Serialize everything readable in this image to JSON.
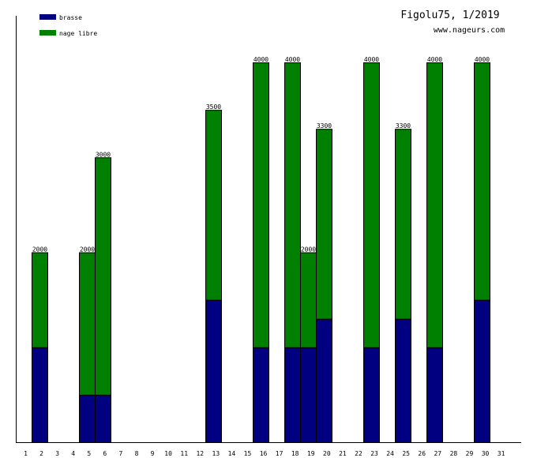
{
  "chart_data": {
    "type": "bar",
    "stacked": true,
    "title": "Figolu75, 1/2019",
    "subtitle": "www.nageurs.com",
    "xlabel": "",
    "ylabel": "",
    "ylim": [
      0,
      4000
    ],
    "grid": false,
    "legend_position": "top-left",
    "categories": [
      "1",
      "2",
      "3",
      "4",
      "5",
      "6",
      "7",
      "8",
      "9",
      "10",
      "11",
      "12",
      "13",
      "14",
      "15",
      "16",
      "17",
      "18",
      "19",
      "20",
      "21",
      "22",
      "23",
      "24",
      "25",
      "26",
      "27",
      "28",
      "29",
      "30",
      "31"
    ],
    "series": [
      {
        "name": "brasse",
        "color": "#000080",
        "values": [
          0,
          1000,
          0,
          0,
          500,
          500,
          0,
          0,
          0,
          0,
          0,
          0,
          1500,
          0,
          0,
          1000,
          0,
          1000,
          1000,
          1300,
          0,
          0,
          1000,
          0,
          1300,
          0,
          1000,
          0,
          0,
          1500,
          0
        ]
      },
      {
        "name": "nage libre",
        "color": "#008000",
        "values": [
          0,
          1000,
          0,
          0,
          1500,
          2500,
          0,
          0,
          0,
          0,
          0,
          0,
          2000,
          0,
          0,
          3000,
          0,
          3000,
          1000,
          2000,
          0,
          0,
          3000,
          0,
          2000,
          0,
          3000,
          0,
          0,
          2500,
          0
        ]
      }
    ],
    "totals": [
      "",
      "2000",
      "",
      "",
      "2000",
      "3000",
      "",
      "",
      "",
      "",
      "",
      "",
      "3500",
      "",
      "",
      "4000",
      "",
      "4000",
      "2000",
      "3300",
      "",
      "",
      "4000",
      "",
      "3300",
      "",
      "4000",
      "",
      "",
      "4000",
      ""
    ]
  }
}
